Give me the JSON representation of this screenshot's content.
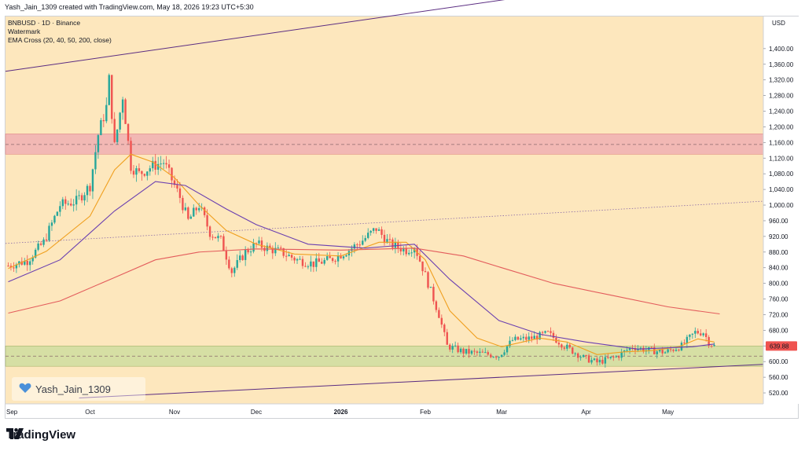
{
  "header": {
    "created_by": "Yash_Jain_1309 created with TradingView.com, May 18, 2026 19:23 UTC+5:30"
  },
  "legend": {
    "symbol": "BNBUSD · 1D · Binance",
    "watermark": "Watermark",
    "indicator": "EMA Cross (20, 40, 50, 200, close)"
  },
  "watermark_text": "Yash_Jain_1309",
  "brand": "TradingView",
  "colors": {
    "background": "#fde7bd",
    "resistance_zone": "#f2b8b4",
    "support_zone": "#d6dfa4",
    "channel_line": "#5b2d82",
    "ema_fast": "#f0a020",
    "ema_mid": "#6a3fb0",
    "ema_slow": "#e35c5c",
    "up_candle": "#26a69a",
    "down_candle": "#ef5350",
    "price_label": "#ef5350"
  },
  "chart_data": {
    "type": "candlestick",
    "currency": "USD",
    "last_price": "639.88",
    "y_ticks": [
      "1,400.00",
      "1,360.00",
      "1,320.00",
      "1,280.00",
      "1,240.00",
      "1,200.00",
      "1,160.00",
      "1,120.00",
      "1,080.00",
      "1,040.00",
      "1,000.00",
      "960.00",
      "920.00",
      "880.00",
      "840.00",
      "800.00",
      "760.00",
      "720.00",
      "680.00",
      "640.00",
      "600.00",
      "560.00",
      "520.00"
    ],
    "y_range": [
      492,
      1482
    ],
    "x_ticks": [
      "Sep",
      "Oct",
      "Nov",
      "Dec",
      "2026",
      "Feb",
      "Mar",
      "Apr",
      "May"
    ],
    "date_range": [
      "2025-08-31",
      "2026-06-05"
    ],
    "x_tick_dates": [
      "2025-09-01",
      "2025-10-01",
      "2025-11-01",
      "2025-12-01",
      "2026-01-01",
      "2026-02-01",
      "2026-03-01",
      "2026-04-01",
      "2026-05-01"
    ],
    "zones": [
      {
        "name": "resistance",
        "low": 1130,
        "high": 1182,
        "mid": 1155
      },
      {
        "name": "support",
        "low": 588,
        "high": 640,
        "mid": 614
      }
    ],
    "trendlines": [
      {
        "name": "channel-top",
        "style": "solid",
        "points": [
          [
            "2025-08-31",
            1342
          ],
          [
            "2026-06-05",
            1620
          ]
        ]
      },
      {
        "name": "middle-dotted",
        "style": "dotted",
        "points": [
          [
            "2025-08-31",
            902
          ],
          [
            "2026-06-05",
            1010
          ]
        ]
      },
      {
        "name": "channel-bottom",
        "style": "solid",
        "points": [
          [
            "2025-09-27",
            507
          ],
          [
            "2026-06-05",
            593
          ]
        ]
      }
    ],
    "price_path": [
      [
        "2025-09-01",
        845
      ],
      [
        "2025-09-08",
        858
      ],
      [
        "2025-09-14",
        905
      ],
      [
        "2025-09-20",
        1000
      ],
      [
        "2025-09-26",
        1010
      ],
      [
        "2025-10-01",
        1050
      ],
      [
        "2025-10-04",
        1180
      ],
      [
        "2025-10-07",
        1250
      ],
      [
        "2025-10-08",
        1320
      ],
      [
        "2025-10-10",
        1150
      ],
      [
        "2025-10-13",
        1280
      ],
      [
        "2025-10-16",
        1100
      ],
      [
        "2025-10-19",
        1080
      ],
      [
        "2025-10-24",
        1100
      ],
      [
        "2025-10-28",
        1110
      ],
      [
        "2025-11-03",
        1020
      ],
      [
        "2025-11-06",
        960
      ],
      [
        "2025-11-10",
        1000
      ],
      [
        "2025-11-14",
        930
      ],
      [
        "2025-11-18",
        910
      ],
      [
        "2025-11-22",
        830
      ],
      [
        "2025-11-27",
        880
      ],
      [
        "2025-12-01",
        900
      ],
      [
        "2025-12-05",
        890
      ],
      [
        "2025-12-10",
        880
      ],
      [
        "2025-12-16",
        860
      ],
      [
        "2025-12-22",
        850
      ],
      [
        "2025-12-28",
        860
      ],
      [
        "2026-01-04",
        885
      ],
      [
        "2026-01-09",
        910
      ],
      [
        "2026-01-14",
        940
      ],
      [
        "2026-01-19",
        900
      ],
      [
        "2026-01-25",
        885
      ],
      [
        "2026-01-28",
        895
      ],
      [
        "2026-01-31",
        840
      ],
      [
        "2026-02-03",
        780
      ],
      [
        "2026-02-06",
        720
      ],
      [
        "2026-02-09",
        640
      ],
      [
        "2026-02-15",
        625
      ],
      [
        "2026-02-22",
        620
      ],
      [
        "2026-02-28",
        615
      ],
      [
        "2026-03-05",
        655
      ],
      [
        "2026-03-12",
        660
      ],
      [
        "2026-03-18",
        672
      ],
      [
        "2026-03-24",
        640
      ],
      [
        "2026-03-31",
        610
      ],
      [
        "2026-04-05",
        598
      ],
      [
        "2026-04-12",
        612
      ],
      [
        "2026-04-18",
        638
      ],
      [
        "2026-04-23",
        630
      ],
      [
        "2026-04-30",
        624
      ],
      [
        "2026-05-06",
        640
      ],
      [
        "2026-05-11",
        675
      ],
      [
        "2026-05-14",
        675
      ],
      [
        "2026-05-16",
        650
      ],
      [
        "2026-05-18",
        640
      ]
    ],
    "ema_fast_path": [
      [
        "2025-09-01",
        838
      ],
      [
        "2025-09-15",
        882
      ],
      [
        "2025-10-01",
        972
      ],
      [
        "2025-10-10",
        1090
      ],
      [
        "2025-10-16",
        1130
      ],
      [
        "2025-10-24",
        1110
      ],
      [
        "2025-11-01",
        1070
      ],
      [
        "2025-11-10",
        1000
      ],
      [
        "2025-11-20",
        935
      ],
      [
        "2025-12-01",
        900
      ],
      [
        "2025-12-15",
        875
      ],
      [
        "2026-01-01",
        870
      ],
      [
        "2026-01-15",
        905
      ],
      [
        "2026-01-25",
        905
      ],
      [
        "2026-02-01",
        860
      ],
      [
        "2026-02-10",
        730
      ],
      [
        "2026-02-20",
        660
      ],
      [
        "2026-03-01",
        638
      ],
      [
        "2026-03-15",
        660
      ],
      [
        "2026-03-25",
        650
      ],
      [
        "2026-04-05",
        618
      ],
      [
        "2026-04-15",
        625
      ],
      [
        "2026-04-25",
        628
      ],
      [
        "2026-05-05",
        638
      ],
      [
        "2026-05-12",
        658
      ],
      [
        "2026-05-18",
        650
      ]
    ],
    "ema_mid_path": [
      [
        "2025-09-01",
        804
      ],
      [
        "2025-09-20",
        860
      ],
      [
        "2025-10-10",
        985
      ],
      [
        "2025-10-25",
        1060
      ],
      [
        "2025-11-05",
        1050
      ],
      [
        "2025-11-20",
        990
      ],
      [
        "2025-12-01",
        950
      ],
      [
        "2025-12-20",
        900
      ],
      [
        "2026-01-10",
        890
      ],
      [
        "2026-01-28",
        900
      ],
      [
        "2026-02-10",
        810
      ],
      [
        "2026-02-28",
        705
      ],
      [
        "2026-03-15",
        670
      ],
      [
        "2026-04-01",
        650
      ],
      [
        "2026-04-20",
        632
      ],
      [
        "2026-05-10",
        638
      ],
      [
        "2026-05-18",
        645
      ]
    ],
    "ema_slow_path": [
      [
        "2025-09-01",
        724
      ],
      [
        "2025-09-20",
        755
      ],
      [
        "2025-10-10",
        815
      ],
      [
        "2025-10-25",
        860
      ],
      [
        "2025-11-10",
        880
      ],
      [
        "2025-12-01",
        888
      ],
      [
        "2026-01-01",
        885
      ],
      [
        "2026-01-28",
        890
      ],
      [
        "2026-02-15",
        870
      ],
      [
        "2026-03-01",
        840
      ],
      [
        "2026-03-20",
        800
      ],
      [
        "2026-04-10",
        770
      ],
      [
        "2026-05-01",
        740
      ],
      [
        "2026-05-20",
        722
      ]
    ]
  }
}
